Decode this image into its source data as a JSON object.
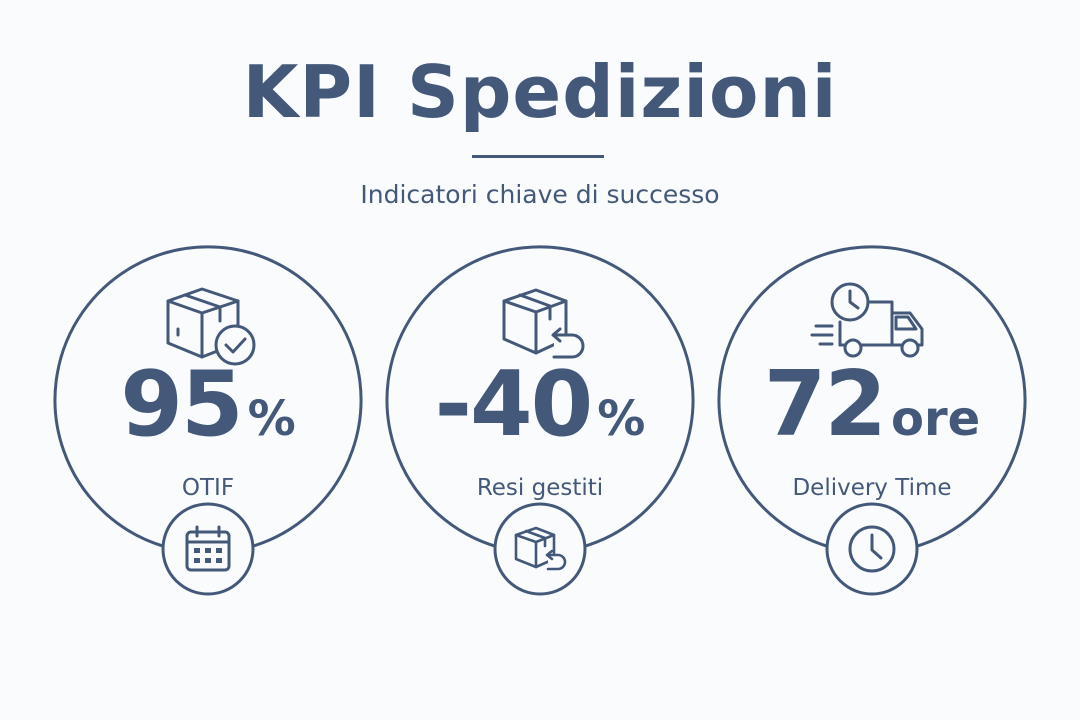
{
  "header": {
    "title": "KPI Spedizioni",
    "subtitle": "Indicatori chiave di successo"
  },
  "colors": {
    "primary": "#44597a",
    "background": "#fafbfc"
  },
  "kpis": [
    {
      "value": "95",
      "unit": "%",
      "label": "OTIF",
      "top_icon": "box-check-icon",
      "badge_icon": "calendar-icon"
    },
    {
      "value": "-40",
      "unit": "%",
      "label": "Resi gestiti",
      "top_icon": "box-return-icon",
      "badge_icon": "box-return-icon"
    },
    {
      "value": "72",
      "unit": "ore",
      "label": "Delivery Time",
      "top_icon": "delivery-truck-clock-icon",
      "badge_icon": "clock-icon"
    }
  ]
}
